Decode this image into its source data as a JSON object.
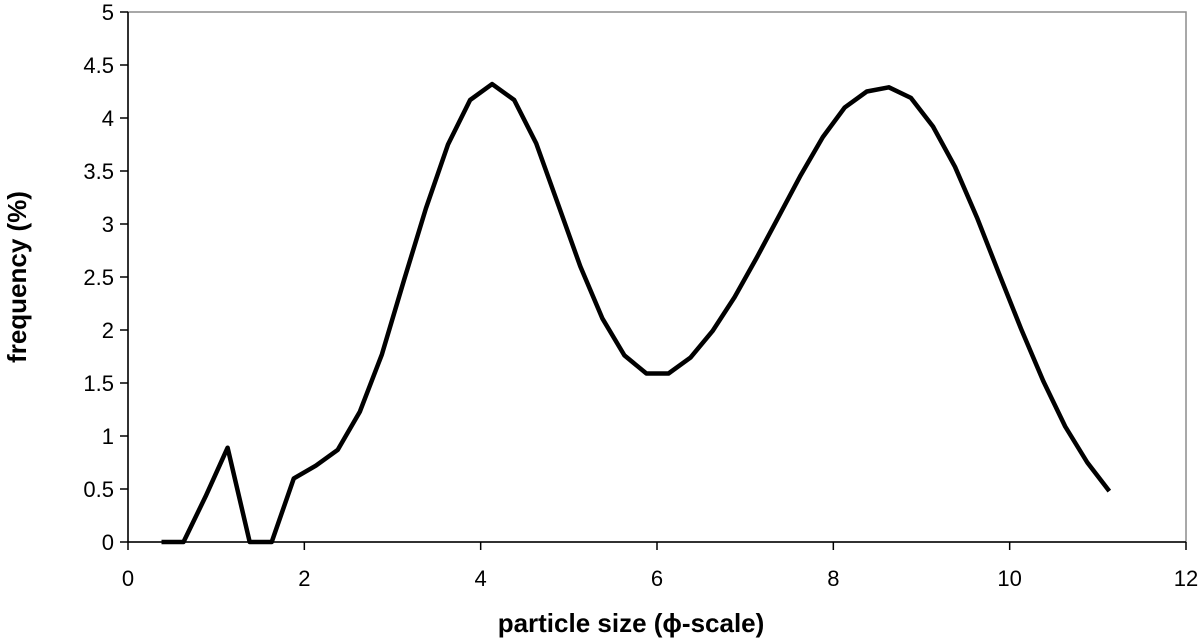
{
  "chart_data": {
    "type": "line",
    "title": "",
    "xlabel": "particle size (ϕ-scale)",
    "ylabel": "frequency (%)",
    "xlim": [
      0,
      12
    ],
    "ylim": [
      0,
      5
    ],
    "x_ticks": [
      0,
      2,
      4,
      6,
      8,
      10,
      12
    ],
    "y_ticks": [
      0,
      0.5,
      1,
      1.5,
      2,
      2.5,
      3,
      3.5,
      4,
      4.5,
      5
    ],
    "grid": false,
    "legend": "none",
    "line_color": "#000000",
    "series": [
      {
        "x": [
          0.38,
          0.63,
          0.88,
          1.13,
          1.38,
          1.63,
          1.88,
          2.13,
          2.38,
          2.63,
          2.88,
          3.13,
          3.38,
          3.63,
          3.88,
          4.13,
          4.38,
          4.63,
          4.88,
          5.13,
          5.38,
          5.63,
          5.88,
          6.13,
          6.38,
          6.63,
          6.88,
          7.13,
          7.38,
          7.63,
          7.88,
          8.13,
          8.38,
          8.63,
          8.88,
          9.13,
          9.38,
          9.63,
          9.88,
          10.13,
          10.38,
          10.63,
          10.88,
          11.13
        ],
        "y": [
          0,
          0,
          0.43,
          0.89,
          0,
          0,
          0.6,
          0.72,
          0.87,
          1.23,
          1.77,
          2.47,
          3.15,
          3.75,
          4.17,
          4.32,
          4.17,
          3.76,
          3.18,
          2.6,
          2.11,
          1.76,
          1.59,
          1.59,
          1.74,
          1.99,
          2.31,
          2.68,
          3.07,
          3.46,
          3.82,
          4.1,
          4.25,
          4.29,
          4.19,
          3.92,
          3.54,
          3.06,
          2.53,
          2.01,
          1.52,
          1.09,
          0.75,
          0.48
        ]
      }
    ]
  }
}
